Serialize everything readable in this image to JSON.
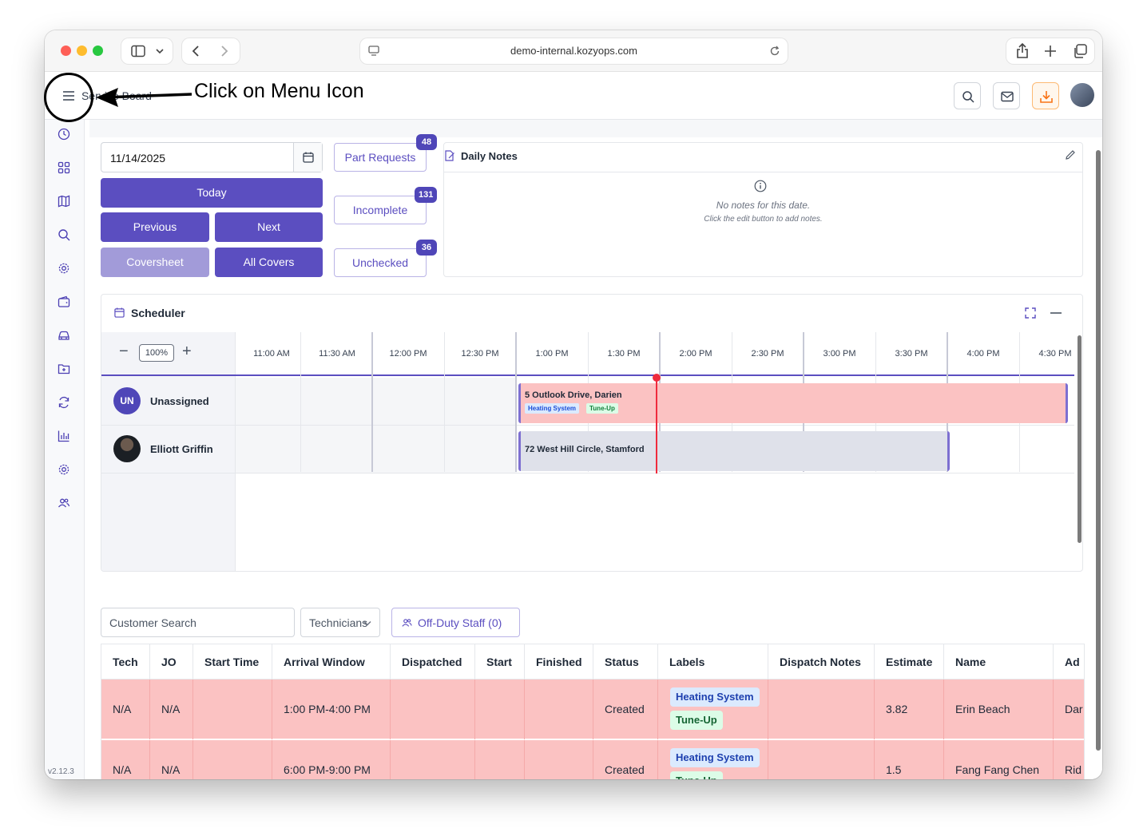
{
  "browser": {
    "url": "demo-internal.kozyops.com"
  },
  "header": {
    "page_title": "Service Board",
    "icons": [
      "search-icon",
      "mail-icon",
      "download-icon"
    ]
  },
  "annotation": {
    "text": "Click  on Menu Icon"
  },
  "sidebar": {
    "items": [
      "clock-icon",
      "grid-icon",
      "map-icon",
      "search-icon",
      "gear-icon",
      "wallet-icon",
      "car-icon",
      "folder-icon",
      "refresh-icon",
      "chart-icon",
      "settings-icon",
      "users-icon"
    ],
    "version": "v2.12.3"
  },
  "controls": {
    "date": "11/14/2025",
    "today": "Today",
    "previous": "Previous",
    "next": "Next",
    "coversheet": "Coversheet",
    "all_covers": "All Covers",
    "part_requests": {
      "label": "Part Requests",
      "count": "48"
    },
    "incomplete": {
      "label": "Incomplete",
      "count": "131"
    },
    "unchecked": {
      "label": "Unchecked",
      "count": "36"
    }
  },
  "notes": {
    "title": "Daily Notes",
    "empty_line1": "No notes for this date.",
    "empty_line2": "Click the edit button to add notes."
  },
  "scheduler": {
    "title": "Scheduler",
    "zoom": "100%",
    "times": [
      "11:00 AM",
      "11:30 AM",
      "12:00 PM",
      "12:30 PM",
      "1:00 PM",
      "1:30 PM",
      "2:00 PM",
      "2:30 PM",
      "3:00 PM",
      "3:30 PM",
      "4:00 PM",
      "4:30 PM"
    ],
    "technicians": [
      {
        "initials": "UN",
        "name": "Unassigned"
      },
      {
        "initials": "",
        "name": "Elliott Griffin"
      }
    ],
    "events": [
      {
        "title": "5 Outlook Drive, Darien",
        "labels": [
          "Heating System",
          "Tune-Up"
        ]
      },
      {
        "title": "72 West Hill Circle, Stamford",
        "labels": []
      }
    ]
  },
  "filters": {
    "customer_search_placeholder": "Customer Search",
    "technicians": "Technicians",
    "off_duty": "Off-Duty Staff (0)"
  },
  "table": {
    "columns": [
      "Tech",
      "JO",
      "Start Time",
      "Arrival Window",
      "Dispatched",
      "Start",
      "Finished",
      "Status",
      "Labels",
      "Dispatch Notes",
      "Estimate",
      "Name",
      "Ad"
    ],
    "rows": [
      {
        "tech": "N/A",
        "jo": "N/A",
        "start_time": "",
        "arrival_window": "1:00 PM-4:00 PM",
        "dispatched": "",
        "start": "",
        "finished": "",
        "status": "Created",
        "labels": [
          "Heating System",
          "Tune-Up"
        ],
        "dispatch_notes": "",
        "estimate": "3.82",
        "name": "Erin Beach",
        "address": "Dar"
      },
      {
        "tech": "N/A",
        "jo": "N/A",
        "start_time": "",
        "arrival_window": "6:00 PM-9:00 PM",
        "dispatched": "",
        "start": "",
        "finished": "",
        "status": "Created",
        "labels": [
          "Heating System",
          "Tune-Up"
        ],
        "dispatch_notes": "",
        "estimate": "1.5",
        "name": "Fang Fang Chen",
        "address": "Rid"
      }
    ]
  }
}
